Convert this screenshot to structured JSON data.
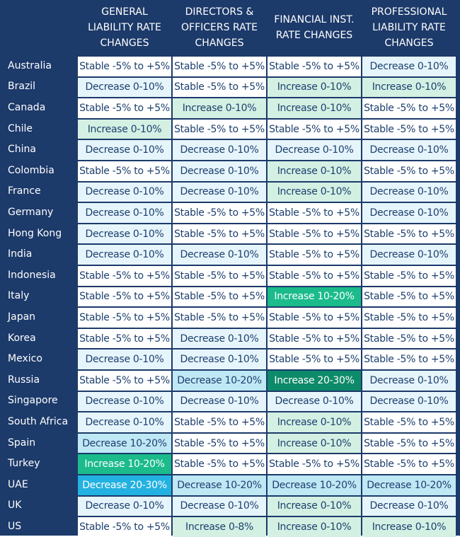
{
  "table": {
    "headers": [
      "GENERAL\nLIABILITY  RATE\nCHANGES",
      "DIRECTORS &\nOFFICERS RATE\nCHANGES",
      "FINANCIAL INST.\nRATE CHANGES",
      "PROFESSIONAL\nLIABILITY RATE\nCHANGES"
    ],
    "rows": [
      {
        "country": "Australia",
        "cells": [
          {
            "text": "Stable -5% to +5%",
            "color": "#ffffff"
          },
          {
            "text": "Stable -5% to +5%",
            "color": "#ffffff"
          },
          {
            "text": "Stable -5% to +5%",
            "color": "#ffffff"
          },
          {
            "text": "Decrease 0-10%",
            "color": "#e6f5fb"
          }
        ]
      },
      {
        "country": "Brazil",
        "cells": [
          {
            "text": "Decrease 0-10%",
            "color": "#e6f5fb"
          },
          {
            "text": "Stable -5% to +5%",
            "color": "#ffffff"
          },
          {
            "text": "Increase 0-10%",
            "color": "#d3f0e3"
          },
          {
            "text": "Increase 0-10%",
            "color": "#d3f0e3"
          }
        ]
      },
      {
        "country": "Canada",
        "cells": [
          {
            "text": "Stable -5% to +5%",
            "color": "#ffffff"
          },
          {
            "text": "Increase 0-10%",
            "color": "#d3f0e3"
          },
          {
            "text": "Increase 0-10%",
            "color": "#d3f0e3"
          },
          {
            "text": "Stable -5% to +5%",
            "color": "#ffffff"
          }
        ]
      },
      {
        "country": "Chile",
        "cells": [
          {
            "text": "Increase 0-10%",
            "color": "#d3f0e3"
          },
          {
            "text": "Stable -5% to +5%",
            "color": "#ffffff"
          },
          {
            "text": "Stable -5% to +5%",
            "color": "#ffffff"
          },
          {
            "text": "Stable -5% to +5%",
            "color": "#ffffff"
          }
        ]
      },
      {
        "country": "China",
        "cells": [
          {
            "text": "Decrease 0-10%",
            "color": "#e6f5fb"
          },
          {
            "text": "Decrease 0-10%",
            "color": "#e6f5fb"
          },
          {
            "text": "Decrease 0-10%",
            "color": "#e6f5fb"
          },
          {
            "text": "Decrease 0-10%",
            "color": "#e6f5fb"
          }
        ]
      },
      {
        "country": "Colombia",
        "cells": [
          {
            "text": "Stable -5% to +5%",
            "color": "#ffffff"
          },
          {
            "text": "Decrease 0-10%",
            "color": "#e6f5fb"
          },
          {
            "text": "Increase 0-10%",
            "color": "#d3f0e3"
          },
          {
            "text": "Stable -5% to +5%",
            "color": "#ffffff"
          }
        ]
      },
      {
        "country": "France",
        "cells": [
          {
            "text": "Decrease 0-10%",
            "color": "#e6f5fb"
          },
          {
            "text": "Decrease 0-10%",
            "color": "#e6f5fb"
          },
          {
            "text": "Increase 0-10%",
            "color": "#d3f0e3"
          },
          {
            "text": "Decrease 0-10%",
            "color": "#e6f5fb"
          }
        ]
      },
      {
        "country": "Germany",
        "cells": [
          {
            "text": "Decrease 0-10%",
            "color": "#e6f5fb"
          },
          {
            "text": "Stable -5% to +5%",
            "color": "#ffffff"
          },
          {
            "text": "Stable -5% to +5%",
            "color": "#ffffff"
          },
          {
            "text": "Decrease 0-10%",
            "color": "#e6f5fb"
          }
        ]
      },
      {
        "country": "Hong Kong",
        "cells": [
          {
            "text": "Decrease 0-10%",
            "color": "#e6f5fb"
          },
          {
            "text": "Stable -5% to +5%",
            "color": "#ffffff"
          },
          {
            "text": "Stable -5% to +5%",
            "color": "#ffffff"
          },
          {
            "text": "Stable -5% to +5%",
            "color": "#ffffff"
          }
        ]
      },
      {
        "country": "India",
        "cells": [
          {
            "text": "Decrease 0-10%",
            "color": "#e6f5fb"
          },
          {
            "text": "Decrease 0-10%",
            "color": "#e6f5fb"
          },
          {
            "text": "Stable -5% to +5%",
            "color": "#ffffff"
          },
          {
            "text": "Decrease 0-10%",
            "color": "#e6f5fb"
          }
        ]
      },
      {
        "country": "Indonesia",
        "cells": [
          {
            "text": "Stable -5% to +5%",
            "color": "#ffffff"
          },
          {
            "text": "Stable -5% to +5%",
            "color": "#ffffff"
          },
          {
            "text": "Stable -5% to +5%",
            "color": "#ffffff"
          },
          {
            "text": "Stable -5% to +5%",
            "color": "#ffffff"
          }
        ]
      },
      {
        "country": "Italy",
        "cells": [
          {
            "text": "Stable -5% to +5%",
            "color": "#ffffff"
          },
          {
            "text": "Stable -5% to +5%",
            "color": "#ffffff"
          },
          {
            "text": "Increase 10-20%",
            "color": "#1bbb8b"
          },
          {
            "text": "Stable -5% to +5%",
            "color": "#ffffff"
          }
        ]
      },
      {
        "country": "Japan",
        "cells": [
          {
            "text": "Stable -5% to +5%",
            "color": "#ffffff"
          },
          {
            "text": "Stable -5% to +5%",
            "color": "#ffffff"
          },
          {
            "text": "Stable -5% to +5%",
            "color": "#ffffff"
          },
          {
            "text": "Stable -5% to +5%",
            "color": "#ffffff"
          }
        ]
      },
      {
        "country": "Korea",
        "cells": [
          {
            "text": "Stable -5% to +5%",
            "color": "#ffffff"
          },
          {
            "text": "Decrease 0-10%",
            "color": "#e6f5fb"
          },
          {
            "text": "Stable -5% to +5%",
            "color": "#ffffff"
          },
          {
            "text": "Stable -5% to +5%",
            "color": "#ffffff"
          }
        ]
      },
      {
        "country": "Mexico",
        "cells": [
          {
            "text": "Decrease 0-10%",
            "color": "#e6f5fb"
          },
          {
            "text": "Decrease 0-10%",
            "color": "#e6f5fb"
          },
          {
            "text": "Stable -5% to +5%",
            "color": "#ffffff"
          },
          {
            "text": "Stable -5% to +5%",
            "color": "#ffffff"
          }
        ]
      },
      {
        "country": "Russia",
        "cells": [
          {
            "text": "Stable -5% to +5%",
            "color": "#ffffff"
          },
          {
            "text": "Decrease 10-20%",
            "color": "#bfe8f5"
          },
          {
            "text": "Increase 20-30%",
            "color": "#0d8a69"
          },
          {
            "text": "Decrease 0-10%",
            "color": "#e6f5fb"
          }
        ]
      },
      {
        "country": "Singapore",
        "cells": [
          {
            "text": "Decrease 0-10%",
            "color": "#e6f5fb"
          },
          {
            "text": "Decrease 0-10%",
            "color": "#e6f5fb"
          },
          {
            "text": "Decrease 0-10%",
            "color": "#e6f5fb"
          },
          {
            "text": "Decrease 0-10%",
            "color": "#e6f5fb"
          }
        ]
      },
      {
        "country": "South Africa",
        "cells": [
          {
            "text": "Decrease 0-10%",
            "color": "#e6f5fb"
          },
          {
            "text": "Stable -5% to +5%",
            "color": "#ffffff"
          },
          {
            "text": "Increase 0-10%",
            "color": "#d3f0e3"
          },
          {
            "text": "Stable -5% to +5%",
            "color": "#ffffff"
          }
        ]
      },
      {
        "country": "Spain",
        "cells": [
          {
            "text": "Decrease 10-20%",
            "color": "#bfe8f5"
          },
          {
            "text": "Stable -5% to +5%",
            "color": "#ffffff"
          },
          {
            "text": "Increase 0-10%",
            "color": "#d3f0e3"
          },
          {
            "text": "Stable -5% to +5%",
            "color": "#ffffff"
          }
        ]
      },
      {
        "country": "Turkey",
        "cells": [
          {
            "text": "Increase 10-20%",
            "color": "#1bbb8b"
          },
          {
            "text": "Stable -5% to +5%",
            "color": "#ffffff"
          },
          {
            "text": "Stable -5% to +5%",
            "color": "#ffffff"
          },
          {
            "text": "Stable -5% to +5%",
            "color": "#ffffff"
          }
        ]
      },
      {
        "country": "UAE",
        "cells": [
          {
            "text": "Decrease 20-30%",
            "color": "#22b1e1"
          },
          {
            "text": "Decrease 10-20%",
            "color": "#bfe8f5"
          },
          {
            "text": "Decrease 10-20%",
            "color": "#bfe8f5"
          },
          {
            "text": "Decrease 10-20%",
            "color": "#bfe8f5"
          }
        ]
      },
      {
        "country": "UK",
        "cells": [
          {
            "text": "Decrease 0-10%",
            "color": "#e6f5fb"
          },
          {
            "text": "Decrease 0-10%",
            "color": "#e6f5fb"
          },
          {
            "text": "Increase 0-10%",
            "color": "#d3f0e3"
          },
          {
            "text": "Decrease 0-10%",
            "color": "#e6f5fb"
          }
        ]
      },
      {
        "country": "US",
        "cells": [
          {
            "text": "Stable -5% to +5%",
            "color": "#ffffff"
          },
          {
            "text": "Increase 0-8%",
            "color": "#d3f0e3"
          },
          {
            "text": "Increase 0-10%",
            "color": "#d3f0e3"
          },
          {
            "text": "Increase 0-10%",
            "color": "#d3f0e3"
          }
        ]
      }
    ]
  }
}
